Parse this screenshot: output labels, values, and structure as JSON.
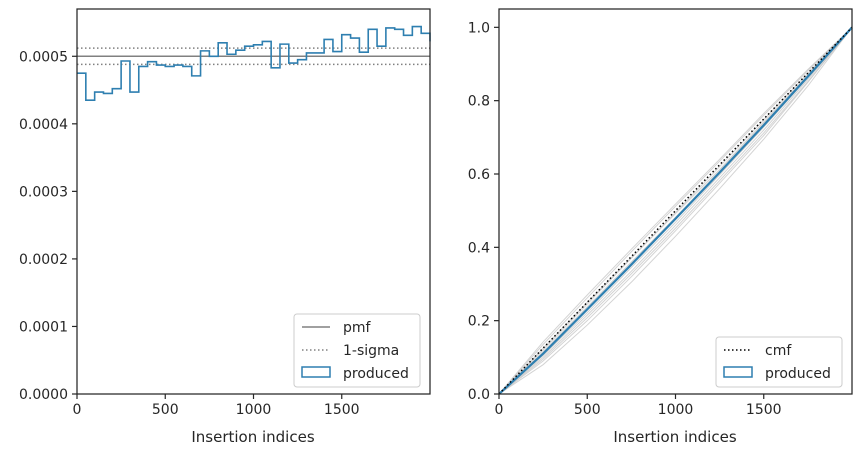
{
  "chart_data": [
    {
      "type": "step",
      "xlabel": "Insertion indices",
      "ylabel": "",
      "xlim": [
        0,
        2000
      ],
      "ylim": [
        0,
        0.00057
      ],
      "xticks": [
        0,
        500,
        1000,
        1500
      ],
      "xtick_labels": [
        "0",
        "500",
        "1000",
        "1500"
      ],
      "yticks": [
        0,
        0.0001,
        0.0002,
        0.0003,
        0.0004,
        0.0005
      ],
      "ytick_labels": [
        "0.0000",
        "0.0001",
        "0.0002",
        "0.0003",
        "0.0004",
        "0.0005"
      ],
      "pmf": 0.0005,
      "sigma_band": [
        0.000488,
        0.000512
      ],
      "bin_edges": [
        0,
        50,
        100,
        150,
        200,
        250,
        300,
        350,
        400,
        450,
        500,
        550,
        600,
        650,
        700,
        750,
        800,
        850,
        900,
        950,
        1000,
        1050,
        1100,
        1150,
        1200,
        1250,
        1300,
        1350,
        1400,
        1450,
        1500,
        1550,
        1600,
        1650,
        1700,
        1750,
        1800,
        1850,
        1900,
        1950,
        2000
      ],
      "bin_values": [
        0.000475,
        0.000435,
        0.000447,
        0.000445,
        0.000452,
        0.000493,
        0.000447,
        0.000485,
        0.000492,
        0.000487,
        0.000485,
        0.000487,
        0.000485,
        0.000471,
        0.000508,
        0.0005,
        0.00052,
        0.000503,
        0.000509,
        0.000515,
        0.000517,
        0.000522,
        0.000483,
        0.000518,
        0.00049,
        0.000495,
        0.000505,
        0.000505,
        0.000525,
        0.000507,
        0.000532,
        0.000527,
        0.000506,
        0.00054,
        0.000515,
        0.000542,
        0.00054,
        0.000531,
        0.000544,
        0.000534,
        0.000522
      ],
      "legend": {
        "placement": "lower-right",
        "entries": [
          {
            "label": "pmf",
            "style": "solid",
            "color": "#808080"
          },
          {
            "label": "1-sigma",
            "style": "dotted",
            "color": "#808080"
          },
          {
            "label": "produced",
            "style": "box",
            "color": "#1f77b4"
          }
        ]
      },
      "colors": {
        "series": "#2e7fb0",
        "reference": "#808080"
      }
    },
    {
      "type": "line",
      "xlabel": "Insertion indices",
      "ylabel": "",
      "xlim": [
        0,
        2000
      ],
      "ylim": [
        0,
        1.05
      ],
      "xticks": [
        0,
        500,
        1000,
        1500
      ],
      "xtick_labels": [
        "0",
        "500",
        "1000",
        "1500"
      ],
      "yticks": [
        0,
        0.2,
        0.4,
        0.6,
        0.8,
        1.0
      ],
      "ytick_labels": [
        "0.0",
        "0.2",
        "0.4",
        "0.6",
        "0.8",
        "1.0"
      ],
      "cmf": {
        "x": [
          0,
          2000
        ],
        "y": [
          0,
          1.0
        ]
      },
      "produced": {
        "x": [
          0,
          250,
          500,
          750,
          1000,
          1250,
          1500,
          1750,
          2000
        ],
        "y": [
          0,
          0.11,
          0.231,
          0.353,
          0.478,
          0.604,
          0.733,
          0.866,
          1.0
        ]
      },
      "background_samples": [
        [
          0,
          0.09,
          0.2,
          0.32,
          0.445,
          0.575,
          0.705,
          0.85,
          1.0
        ],
        [
          0,
          0.12,
          0.245,
          0.37,
          0.495,
          0.62,
          0.748,
          0.875,
          1.0
        ],
        [
          0,
          0.1,
          0.215,
          0.335,
          0.46,
          0.59,
          0.72,
          0.858,
          1.0
        ],
        [
          0,
          0.135,
          0.262,
          0.388,
          0.512,
          0.635,
          0.76,
          0.882,
          1.0
        ],
        [
          0,
          0.105,
          0.222,
          0.345,
          0.468,
          0.598,
          0.728,
          0.862,
          1.0
        ],
        [
          0,
          0.08,
          0.188,
          0.305,
          0.43,
          0.56,
          0.695,
          0.84,
          1.0
        ],
        [
          0,
          0.125,
          0.25,
          0.372,
          0.492,
          0.612,
          0.742,
          0.87,
          1.0
        ],
        [
          0,
          0.115,
          0.238,
          0.36,
          0.482,
          0.608,
          0.738,
          0.868,
          1.0
        ],
        [
          0,
          0.095,
          0.208,
          0.328,
          0.452,
          0.582,
          0.712,
          0.852,
          1.0
        ],
        [
          0,
          0.142,
          0.27,
          0.395,
          0.518,
          0.64,
          0.765,
          0.885,
          1.0
        ]
      ],
      "legend": {
        "placement": "lower-right",
        "entries": [
          {
            "label": "cmf",
            "style": "dotted",
            "color": "#000000"
          },
          {
            "label": "produced",
            "style": "box",
            "color": "#1f77b4"
          }
        ]
      },
      "colors": {
        "series": "#2e7fb0",
        "reference": "#000000",
        "samples": "#c8c8c8"
      }
    }
  ]
}
